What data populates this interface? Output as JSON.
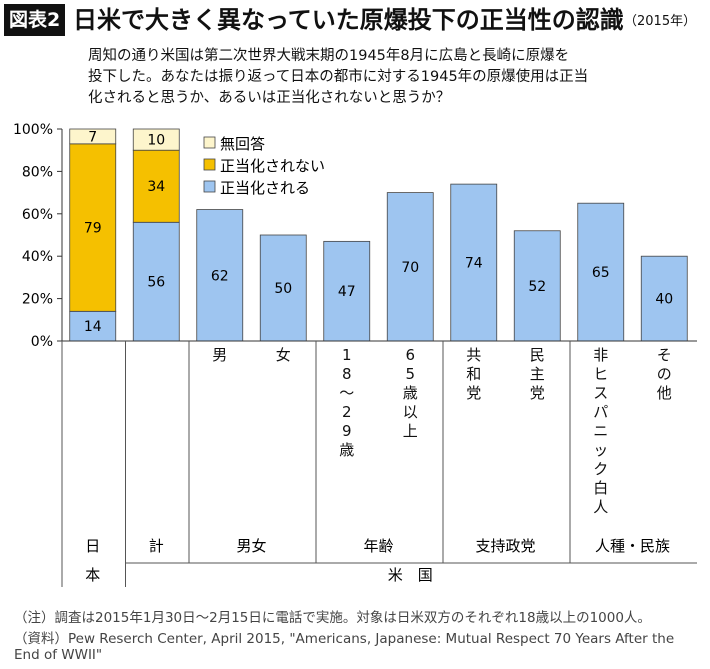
{
  "header": {
    "badge": "図表2",
    "title": "日米で大きく異なっていた原爆投下の正当性の認識",
    "year": "（2015年）"
  },
  "question": [
    "周知の通り米国は第二次世界大戦末期の1945年8月に広島と長崎に原爆を",
    "投下した。あなたは振り返って日本の都市に対する1945年の原爆使用は正当",
    "化されると思うか、あるいは正当化されないと思うか？"
  ],
  "chart_data": {
    "type": "bar",
    "stacked": true,
    "ylim": [
      0,
      100
    ],
    "yticks": [
      "0%",
      "20%",
      "40%",
      "60%",
      "80%",
      "100%"
    ],
    "categories": [
      "日本",
      "計",
      "男",
      "女",
      "18～29歳",
      "65歳以上",
      "共和党",
      "民主党",
      "非ヒスパニック白人",
      "その他"
    ],
    "category_labels": [
      "",
      "",
      "男",
      "女",
      "18～29歳",
      "65歳以上",
      "共和党",
      "民主党",
      "非ヒスパニック白人",
      "その他"
    ],
    "series": [
      {
        "name": "正当化される",
        "color": "#9ec5f0",
        "values": [
          14,
          56,
          62,
          50,
          47,
          70,
          74,
          52,
          65,
          40
        ]
      },
      {
        "name": "正当化されない",
        "color": "#f5c000",
        "values": [
          79,
          34,
          null,
          null,
          null,
          null,
          null,
          null,
          null,
          null
        ]
      },
      {
        "name": "無回答",
        "color": "#fdf5cc",
        "values": [
          7,
          10,
          null,
          null,
          null,
          null,
          null,
          null,
          null,
          null
        ]
      }
    ],
    "legend": [
      "無回答",
      "正当化されない",
      "正当化される"
    ],
    "groups": [
      {
        "label": "日",
        "span": [
          0,
          0
        ]
      },
      {
        "label": "計",
        "span": [
          1,
          1
        ]
      },
      {
        "label": "男女",
        "span": [
          2,
          3
        ]
      },
      {
        "label": "年齢",
        "span": [
          4,
          5
        ]
      },
      {
        "label": "支持政党",
        "span": [
          6,
          7
        ]
      },
      {
        "label": "人種・民族",
        "span": [
          8,
          9
        ]
      }
    ],
    "country_groups": [
      {
        "label": "本",
        "span": [
          0,
          0
        ]
      },
      {
        "label": "米　国",
        "span": [
          1,
          9
        ]
      }
    ]
  },
  "notes": [
    "（注）調査は2015年1月30日～2月15日に電話で実施。対象は日米双方のそれぞれ18歳以上の1000人。",
    "（資料）Pew Reserch Center, April  2015, \"Americans, Japanese: Mutual Respect 70 Years After the",
    "End of WWII\""
  ]
}
